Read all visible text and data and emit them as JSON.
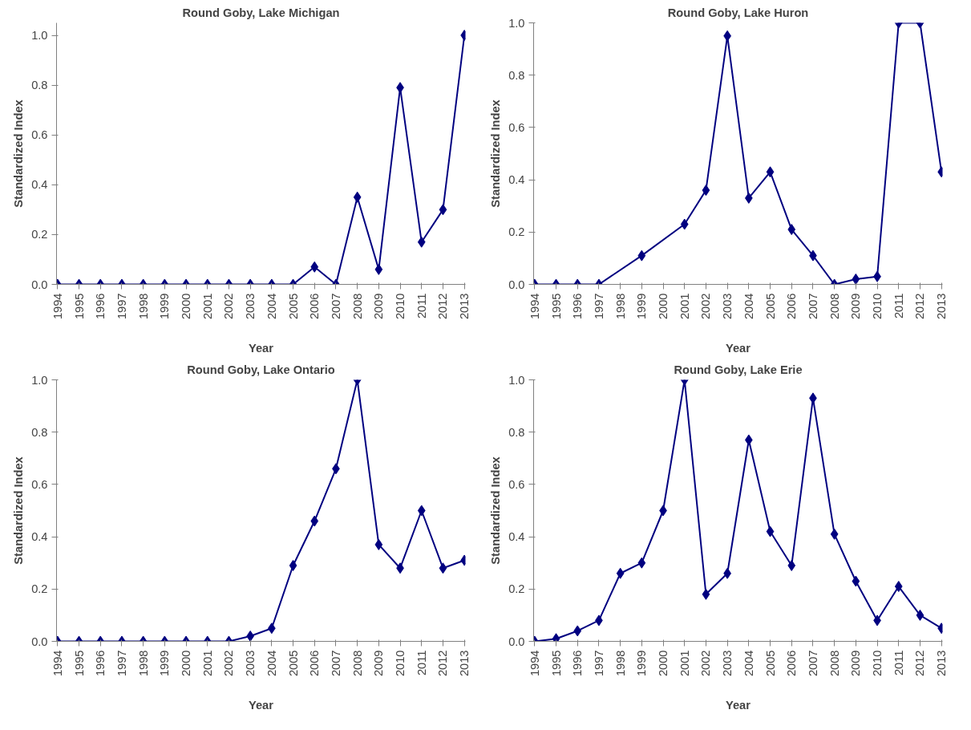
{
  "chart_data": [
    {
      "type": "line",
      "title": "Round Goby, Lake Michigan",
      "xlabel": "Year",
      "ylabel": "Standardized Index",
      "categories": [
        "1994",
        "1995",
        "1996",
        "1997",
        "1998",
        "1999",
        "2000",
        "2001",
        "2002",
        "2003",
        "2004",
        "2005",
        "2006",
        "2007",
        "2008",
        "2009",
        "2010",
        "2011",
        "2012",
        "2013"
      ],
      "series": [
        {
          "color": "#000080",
          "values": [
            0,
            0,
            0,
            0,
            0,
            0,
            0,
            0,
            0,
            0,
            0,
            0,
            0.07,
            0,
            0.35,
            0.06,
            0.79,
            0.17,
            0.3,
            1.0
          ]
        }
      ],
      "ylim": [
        0,
        1.05
      ],
      "yticks": [
        {
          "value": 0,
          "label": "0.0"
        },
        {
          "value": 0.2,
          "label": "0.2"
        },
        {
          "value": 0.4,
          "label": "0.4"
        },
        {
          "value": 0.6,
          "label": "0.6"
        },
        {
          "value": 0.8,
          "label": "0.8"
        },
        {
          "value": 1,
          "label": "1.0"
        }
      ],
      "marker": "diamond",
      "line_style": "solid",
      "grid": false
    },
    {
      "type": "line",
      "title": "Round Goby, Lake Huron",
      "xlabel": "Year",
      "ylabel": "Standardized Index",
      "categories": [
        "1994",
        "1995",
        "1996",
        "1997",
        "1998",
        "1999",
        "2000",
        "2001",
        "2002",
        "2003",
        "2004",
        "2005",
        "2006",
        "2007",
        "2008",
        "2009",
        "2010",
        "2011",
        "2012",
        "2013"
      ],
      "series": [
        {
          "color": "#000080",
          "values": [
            0,
            0,
            0,
            0,
            null,
            0.11,
            null,
            0.23,
            0.36,
            0.95,
            0.33,
            0.43,
            0.21,
            0.11,
            0,
            0.02,
            0.03,
            1.0,
            1.0,
            0.43
          ]
        }
      ],
      "ylim": [
        0,
        1.0
      ],
      "yticks": [
        {
          "value": 0,
          "label": "0.0"
        },
        {
          "value": 0.2,
          "label": "0.2"
        },
        {
          "value": 0.4,
          "label": "0.4"
        },
        {
          "value": 0.6,
          "label": "0.6"
        },
        {
          "value": 0.8,
          "label": "0.8"
        },
        {
          "value": 1,
          "label": "1.0"
        }
      ],
      "marker": "diamond",
      "line_style": "solid",
      "grid": false
    },
    {
      "type": "line",
      "title": "Round Goby, Lake Ontario",
      "xlabel": "Year",
      "ylabel": "Standardized Index",
      "categories": [
        "1994",
        "1995",
        "1996",
        "1997",
        "1998",
        "1999",
        "2000",
        "2001",
        "2002",
        "2003",
        "2004",
        "2005",
        "2006",
        "2007",
        "2008",
        "2009",
        "2010",
        "2011",
        "2012",
        "2013"
      ],
      "series": [
        {
          "color": "#000080",
          "values": [
            0,
            0,
            0,
            0,
            0,
            0,
            0,
            0,
            0,
            0.02,
            0.05,
            0.29,
            0.46,
            0.66,
            1.0,
            0.37,
            0.28,
            0.5,
            0.28,
            0.31
          ]
        }
      ],
      "ylim": [
        0,
        1.0
      ],
      "yticks": [
        {
          "value": 0,
          "label": "0.0"
        },
        {
          "value": 0.2,
          "label": "0.2"
        },
        {
          "value": 0.4,
          "label": "0.4"
        },
        {
          "value": 0.6,
          "label": "0.6"
        },
        {
          "value": 0.8,
          "label": "0.8"
        },
        {
          "value": 1,
          "label": "1.0"
        }
      ],
      "marker": "diamond",
      "line_style": "solid",
      "grid": false
    },
    {
      "type": "line",
      "title": "Round Goby, Lake Erie",
      "xlabel": "Year",
      "ylabel": "Standardized Index",
      "categories": [
        "1994",
        "1995",
        "1996",
        "1997",
        "1998",
        "1999",
        "2000",
        "2001",
        "2002",
        "2003",
        "2004",
        "2005",
        "2006",
        "2007",
        "2008",
        "2009",
        "2010",
        "2011",
        "2012",
        "2013"
      ],
      "series": [
        {
          "color": "#000080",
          "values": [
            0,
            0.01,
            0.04,
            0.08,
            0.26,
            0.3,
            0.5,
            1.0,
            0.18,
            0.26,
            0.77,
            0.42,
            0.29,
            0.93,
            0.41,
            0.23,
            0.08,
            0.21,
            0.1,
            0.05
          ]
        }
      ],
      "ylim": [
        0,
        1.0
      ],
      "yticks": [
        {
          "value": 0,
          "label": "0.0"
        },
        {
          "value": 0.2,
          "label": "0.2"
        },
        {
          "value": 0.4,
          "label": "0.4"
        },
        {
          "value": 0.6,
          "label": "0.6"
        },
        {
          "value": 0.8,
          "label": "0.8"
        },
        {
          "value": 1,
          "label": "1.0"
        }
      ],
      "marker": "diamond",
      "line_style": "solid",
      "grid": false
    }
  ]
}
